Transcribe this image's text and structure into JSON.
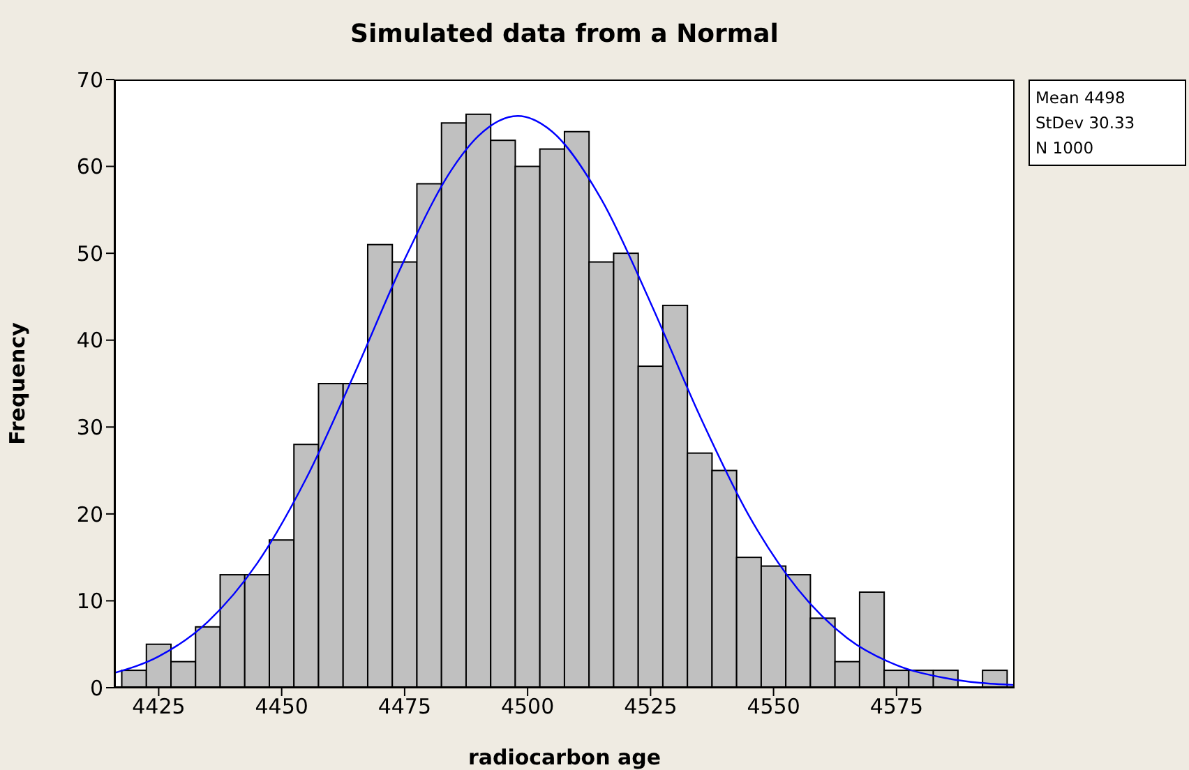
{
  "chart_data": {
    "type": "histogram",
    "title": "Simulated data from a Normal",
    "xlabel": "radiocarbon age",
    "ylabel": "Frequency",
    "bins": [
      4417.5,
      4422.5,
      4427.5,
      4432.5,
      4437.5,
      4442.5,
      4447.5,
      4452.5,
      4457.5,
      4462.5,
      4467.5,
      4472.5,
      4477.5,
      4482.5,
      4487.5,
      4492.5,
      4497.5,
      4502.5,
      4507.5,
      4512.5,
      4517.5,
      4522.5,
      4527.5,
      4532.5,
      4537.5,
      4542.5,
      4547.5,
      4552.5,
      4557.5,
      4562.5,
      4567.5,
      4572.5,
      4577.5,
      4582.5,
      4587.5,
      4592.5,
      4597.5
    ],
    "values": [
      2,
      5,
      3,
      7,
      13,
      13,
      17,
      28,
      35,
      35,
      51,
      49,
      58,
      65,
      66,
      63,
      60,
      62,
      64,
      49,
      50,
      37,
      44,
      27,
      25,
      15,
      14,
      13,
      8,
      3,
      11,
      2,
      2,
      2,
      0,
      2
    ],
    "color": "#c0c0c0",
    "series": [
      {
        "type": "line",
        "color": "#0000ff",
        "x": [
          4416,
          4425,
          4435,
          4445,
          4455,
          4465,
          4475,
          4485,
          4490,
          4498,
          4505,
          4515,
          4525,
          4535,
          4545,
          4555,
          4565,
          4575,
          4585,
          4599
        ],
        "values": [
          1.7,
          3.6,
          7.6,
          14.3,
          24.1,
          36.4,
          49.3,
          60.0,
          63.5,
          65.8,
          64.0,
          56.2,
          44.3,
          31.3,
          19.8,
          11.3,
          5.7,
          2.6,
          1.1,
          0.3
        ]
      }
    ],
    "xlim": [
      4416,
      4599
    ],
    "xticks": [
      4425,
      4450,
      4475,
      4500,
      4525,
      4550,
      4575
    ],
    "ylim": [
      0,
      70
    ],
    "yticks": [
      0,
      10,
      20,
      30,
      40,
      50,
      60,
      70
    ],
    "marker": "none",
    "grid": false,
    "legend": false,
    "annotations": [
      "Mean 4498",
      "StDev 30.33",
      "N 1000"
    ]
  }
}
